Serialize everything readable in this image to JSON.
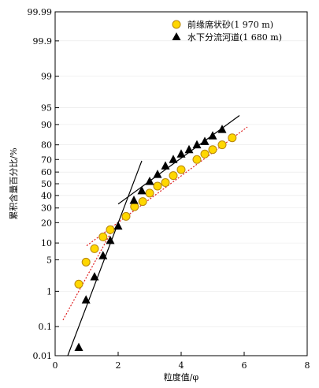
{
  "chart_data": {
    "type": "scatter",
    "xlabel": "粒度值/φ",
    "ylabel": "累积含量百分比/%",
    "xlim": [
      0,
      8
    ],
    "x_ticks": [
      0,
      2,
      4,
      6,
      8
    ],
    "y_scale": "probability",
    "ylim": [
      0.01,
      99.99
    ],
    "y_ticks": [
      0.01,
      0.1,
      1,
      5,
      10,
      20,
      30,
      40,
      50,
      60,
      70,
      80,
      90,
      95,
      99,
      99.9,
      99.99
    ],
    "y_tick_labels": [
      "0.01",
      "0.1",
      "1",
      "5",
      "10",
      "20",
      "30",
      "40",
      "50",
      "60",
      "70",
      "80",
      "90",
      "95",
      "99",
      "99.9",
      "99.99"
    ],
    "legend_position": "top-right",
    "series": [
      {
        "name": "前缘席状砂(1 970 m)",
        "marker": "circle",
        "color": "#FFD700",
        "stroke": "#B8860B",
        "points": [
          [
            0.75,
            1.5
          ],
          [
            0.98,
            4.5
          ],
          [
            1.25,
            8
          ],
          [
            1.52,
            12.5
          ],
          [
            1.75,
            16
          ],
          [
            2.25,
            24
          ],
          [
            2.52,
            31
          ],
          [
            2.78,
            35
          ],
          [
            3.0,
            42
          ],
          [
            3.25,
            48
          ],
          [
            3.5,
            51
          ],
          [
            3.75,
            57
          ],
          [
            4.0,
            62
          ],
          [
            4.5,
            70
          ],
          [
            4.75,
            74
          ],
          [
            5.0,
            77
          ],
          [
            5.3,
            80
          ],
          [
            5.62,
            84
          ]
        ]
      },
      {
        "name": "水下分流河道(1 680 m)",
        "marker": "triangle",
        "color": "#000000",
        "points": [
          [
            0.75,
            0.02
          ],
          [
            0.98,
            0.6
          ],
          [
            1.25,
            2.2
          ],
          [
            1.52,
            6
          ],
          [
            1.75,
            11
          ],
          [
            2.0,
            18
          ],
          [
            2.5,
            36
          ],
          [
            2.75,
            44
          ],
          [
            3.0,
            52
          ],
          [
            3.25,
            58
          ],
          [
            3.5,
            65
          ],
          [
            3.75,
            70
          ],
          [
            4.0,
            74
          ],
          [
            4.25,
            77
          ],
          [
            4.5,
            80
          ],
          [
            4.75,
            82
          ],
          [
            5.0,
            85
          ],
          [
            5.3,
            88
          ]
        ]
      }
    ],
    "fit_lines": [
      {
        "style": "dotted",
        "color": "#E02020",
        "from": [
          0.25,
          0.16
        ],
        "to": [
          1.75,
          14
        ]
      },
      {
        "style": "dotted",
        "color": "#E02020",
        "from": [
          1.0,
          9
        ],
        "to": [
          6.1,
          89
        ]
      },
      {
        "style": "solid",
        "color": "#000000",
        "from": [
          0.4,
          0.01
        ],
        "to": [
          2.75,
          69
        ]
      },
      {
        "style": "solid",
        "color": "#000000",
        "from": [
          2.0,
          33
        ],
        "to": [
          5.85,
          93
        ]
      }
    ]
  }
}
